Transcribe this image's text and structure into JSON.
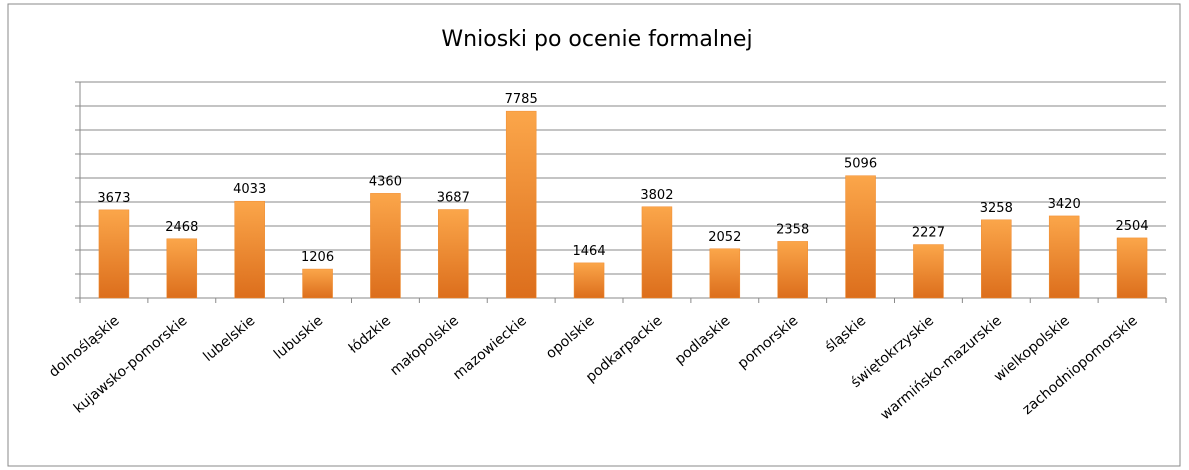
{
  "chart_data": {
    "type": "bar",
    "title": "Wnioski po ocenie formalnej",
    "categories": [
      "dolnośląskie",
      "kujawsko-pomorskie",
      "lubelskie",
      "lubuskie",
      "łódzkie",
      "małopolskie",
      "mazowieckie",
      "opolskie",
      "podkarpackie",
      "podlaskie",
      "pomorskie",
      "śląskie",
      "świętokrzyskie",
      "warmińsko-mazurskie",
      "wielkopolskie",
      "zachodniopomorskie"
    ],
    "values": [
      3673,
      2468,
      4033,
      1206,
      4360,
      3687,
      7785,
      1464,
      3802,
      2052,
      2358,
      5096,
      2227,
      3258,
      3420,
      2504
    ],
    "color": "#f08a2c",
    "ylim": [
      0,
      9000
    ],
    "yticks": [
      0,
      1000,
      2000,
      3000,
      4000,
      5000,
      6000,
      7000,
      8000,
      9000
    ],
    "grid": true
  }
}
